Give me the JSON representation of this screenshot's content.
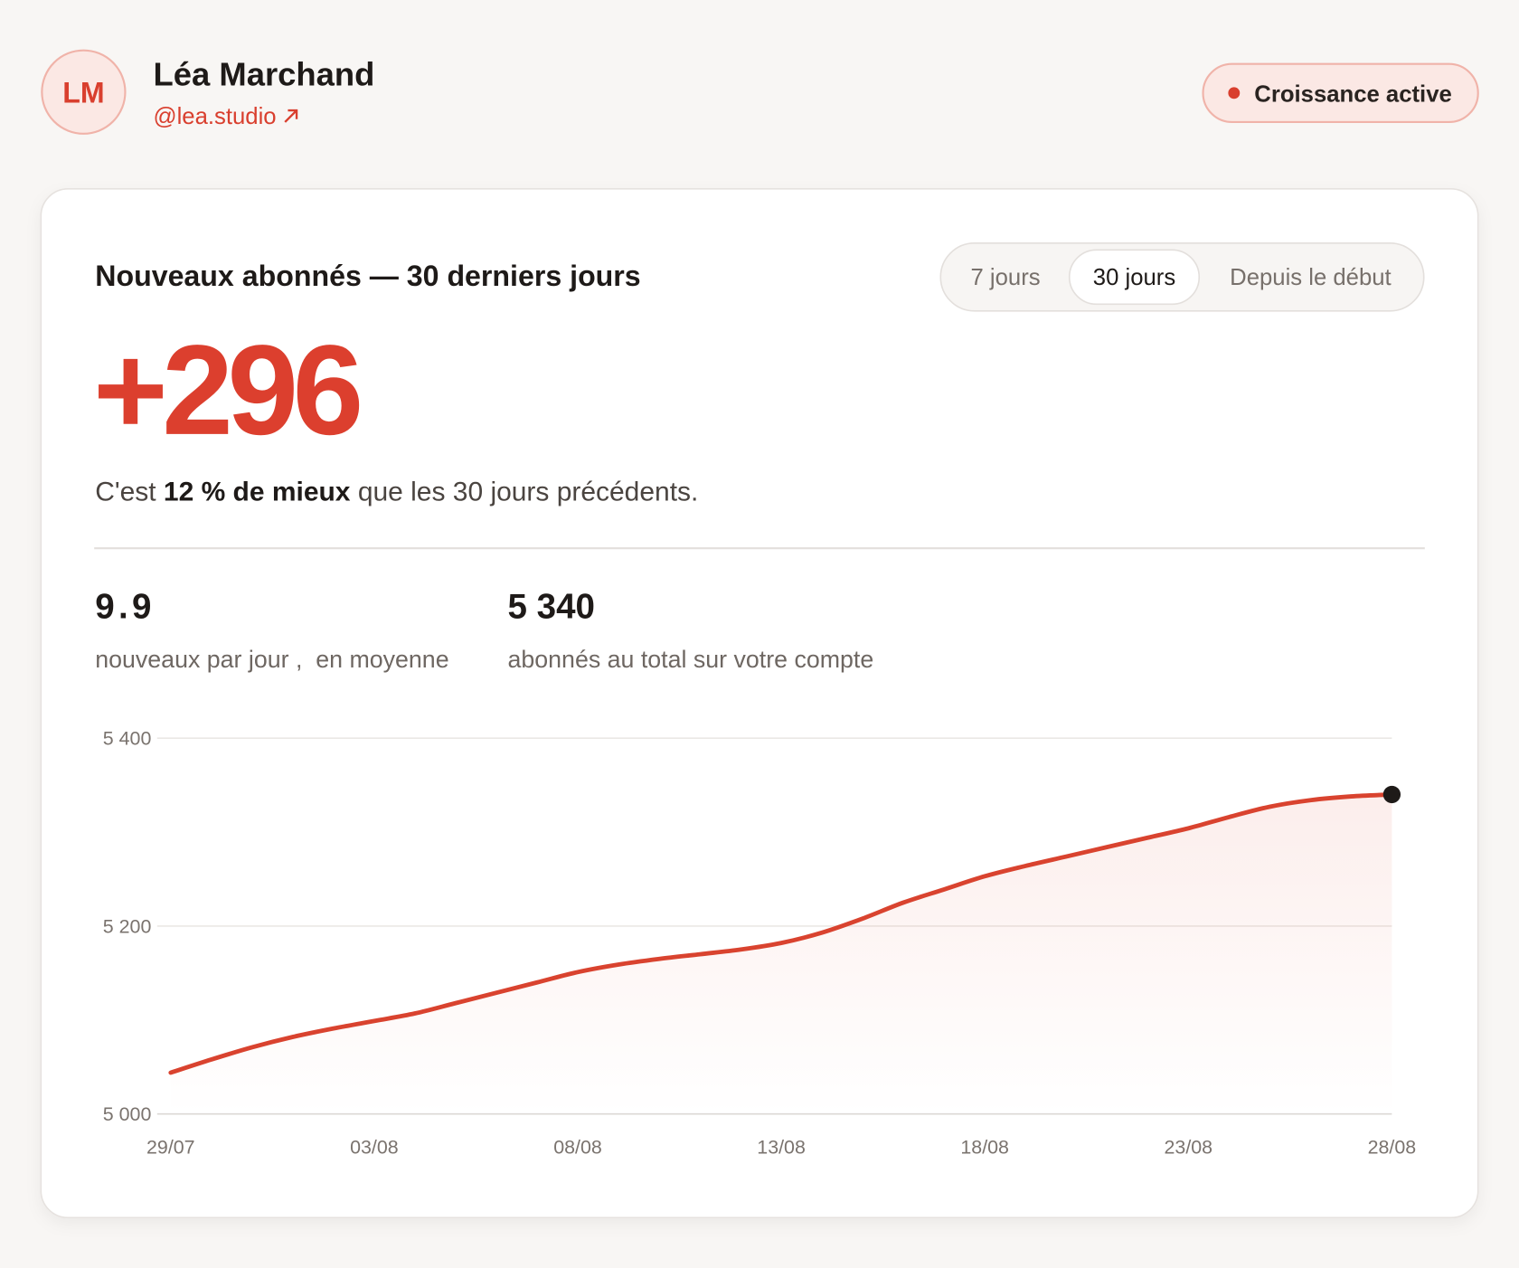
{
  "profile": {
    "initials": "LM",
    "name": "Léa Marchand",
    "handle": "@lea.studio",
    "status": "Croissance active"
  },
  "card": {
    "title": "Nouveaux abonnés — 30 derniers jours",
    "tabs": [
      "7 jours",
      "30 jours",
      "Depuis le début"
    ],
    "active_tab": 1,
    "headline": "+296",
    "comparison": {
      "before": "C'est ",
      "highlight": "12 % de mieux",
      "after": " que les 30 jours précédents."
    },
    "stats": [
      {
        "value": "9.9",
        "label": "nouveaux par jour ,  en moyenne"
      },
      {
        "value": "5 340",
        "label": "abonnés au total sur votre compte"
      }
    ]
  },
  "chart_data": {
    "type": "line",
    "categories": [
      "29/07",
      null,
      null,
      null,
      null,
      "03/08",
      null,
      null,
      null,
      null,
      "08/08",
      null,
      null,
      null,
      null,
      "13/08",
      null,
      null,
      null,
      null,
      "18/08",
      null,
      null,
      null,
      null,
      "23/08",
      null,
      null,
      null,
      null,
      "28/08"
    ],
    "values": [
      5044,
      5058,
      5071,
      5082,
      5091,
      5099,
      5107,
      5118,
      5129,
      5140,
      5151,
      5159,
      5165,
      5170,
      5175,
      5182,
      5193,
      5208,
      5225,
      5239,
      5253,
      5264,
      5274,
      5284,
      5294,
      5304,
      5316,
      5327,
      5334,
      5338,
      5340
    ],
    "color": "#d9432f",
    "ylim": [
      5000,
      5400
    ],
    "yticks": [
      {
        "value": 5000,
        "label": "5 000"
      },
      {
        "value": 5200,
        "label": "5 200"
      },
      {
        "value": 5400,
        "label": "5 400"
      }
    ],
    "grid": true
  }
}
